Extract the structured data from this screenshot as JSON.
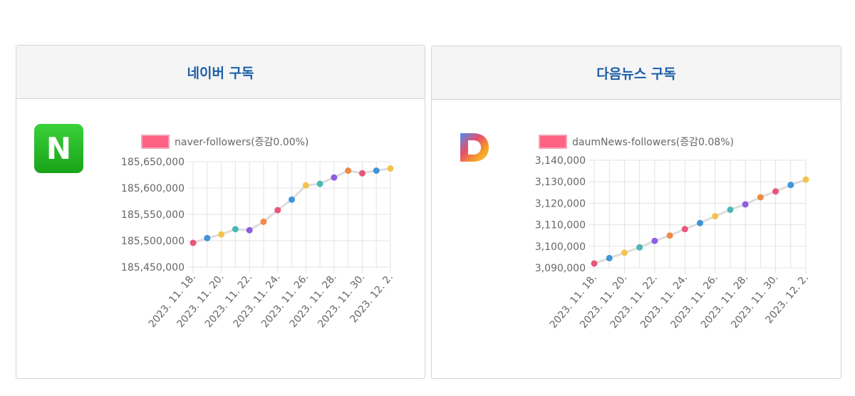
{
  "cards": [
    {
      "title": "네이버 구독",
      "logo_letter": "N",
      "logo_icon": "naver-icon",
      "brand_color": "#1fb81f"
    },
    {
      "title": "다음뉴스 구독",
      "logo_letter": "D",
      "logo_icon": "daum-icon"
    }
  ],
  "colors": {
    "title_text": "#1a5ea8",
    "legend_swatch": "#ff6384",
    "line": "#dddddd",
    "point_palette": [
      "#e8567a",
      "#3e95d9",
      "#f5c24e",
      "#4cb7b3",
      "#8e5fe0",
      "#ee8a45"
    ]
  },
  "chart_data": [
    {
      "type": "line",
      "legend": "naver-followers(증감0.00%)",
      "x": [
        "2023. 11. 18.",
        "2023. 11. 19.",
        "2023. 11. 20.",
        "2023. 11. 21.",
        "2023. 11. 22.",
        "2023. 11. 23.",
        "2023. 11. 24.",
        "2023. 11. 25.",
        "2023. 11. 26.",
        "2023. 11. 27.",
        "2023. 11. 28.",
        "2023. 11. 29.",
        "2023. 11. 30.",
        "2023. 12. 1.",
        "2023. 12. 2."
      ],
      "tick_labels": [
        "2023. 11. 18.",
        "2023. 11. 20.",
        "2023. 11. 22.",
        "2023. 11. 24.",
        "2023. 11. 26.",
        "2023. 11. 28.",
        "2023. 11. 30.",
        "2023. 12. 2."
      ],
      "values": [
        185496000,
        185505000,
        185512000,
        185522000,
        185520000,
        185536000,
        185558000,
        185578000,
        185605000,
        185608000,
        185620000,
        185633000,
        185628000,
        185633000,
        185637000
      ],
      "ylim": [
        185450000,
        185650000
      ],
      "yticks": [
        "185,650,000",
        "185,600,000",
        "185,550,000",
        "185,500,000",
        "185,450,000"
      ],
      "grid": true,
      "legend_position": "top"
    },
    {
      "type": "line",
      "legend": "daumNews-followers(증감0.08%)",
      "x": [
        "2023. 11. 18.",
        "2023. 11. 19.",
        "2023. 11. 20.",
        "2023. 11. 21.",
        "2023. 11. 22.",
        "2023. 11. 23.",
        "2023. 11. 24.",
        "2023. 11. 25.",
        "2023. 11. 26.",
        "2023. 11. 27.",
        "2023. 11. 28.",
        "2023. 11. 29.",
        "2023. 11. 30.",
        "2023. 12. 1.",
        "2023. 12. 2."
      ],
      "tick_labels": [
        "2023. 11. 18.",
        "2023. 11. 20.",
        "2023. 11. 22.",
        "2023. 11. 24.",
        "2023. 11. 26.",
        "2023. 11. 28.",
        "2023. 11. 30.",
        "2023. 12. 2."
      ],
      "values": [
        3092000,
        3094500,
        3097000,
        3099500,
        3102500,
        3105000,
        3108000,
        3110800,
        3114000,
        3117000,
        3119500,
        3122800,
        3125500,
        3128500,
        3131000
      ],
      "ylim": [
        3090000,
        3140000
      ],
      "yticks": [
        "3,140,000",
        "3,130,000",
        "3,120,000",
        "3,110,000",
        "3,100,000",
        "3,090,000"
      ],
      "grid": true,
      "legend_position": "top"
    }
  ]
}
